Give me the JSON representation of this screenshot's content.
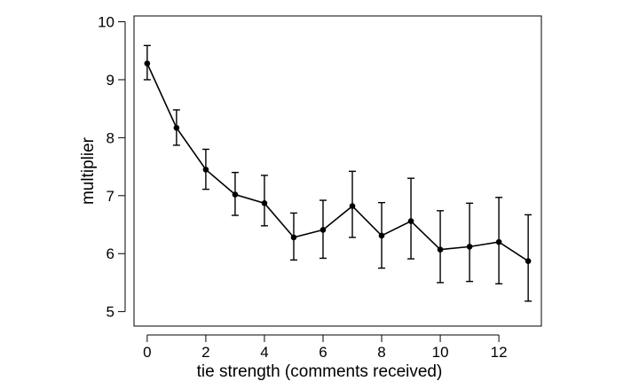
{
  "chart_data": {
    "type": "line",
    "xlabel": "tie strength (comments received)",
    "ylabel": "multiplier",
    "xlim": [
      -0.45,
      13.45
    ],
    "ylim": [
      4.75,
      10.1
    ],
    "x_ticks": [
      0,
      2,
      4,
      6,
      8,
      10,
      12
    ],
    "y_ticks": [
      5,
      6,
      7,
      8,
      9,
      10
    ],
    "grid": false,
    "line_color": "#000000",
    "series": [
      {
        "x": [
          0,
          1,
          2,
          3,
          4,
          5,
          6,
          7,
          8,
          9,
          10,
          11,
          12,
          13
        ],
        "y": [
          9.28,
          8.17,
          7.45,
          7.02,
          6.87,
          6.28,
          6.41,
          6.82,
          6.31,
          6.56,
          6.07,
          6.12,
          6.2,
          5.87
        ],
        "y_lower": [
          9.0,
          7.87,
          7.11,
          6.66,
          6.48,
          5.89,
          5.92,
          6.28,
          5.75,
          5.91,
          5.5,
          5.52,
          5.48,
          5.18
        ],
        "y_upper": [
          9.59,
          8.48,
          7.8,
          7.4,
          7.35,
          6.7,
          6.92,
          7.42,
          6.88,
          7.3,
          6.74,
          6.87,
          6.97,
          6.67
        ]
      }
    ]
  }
}
